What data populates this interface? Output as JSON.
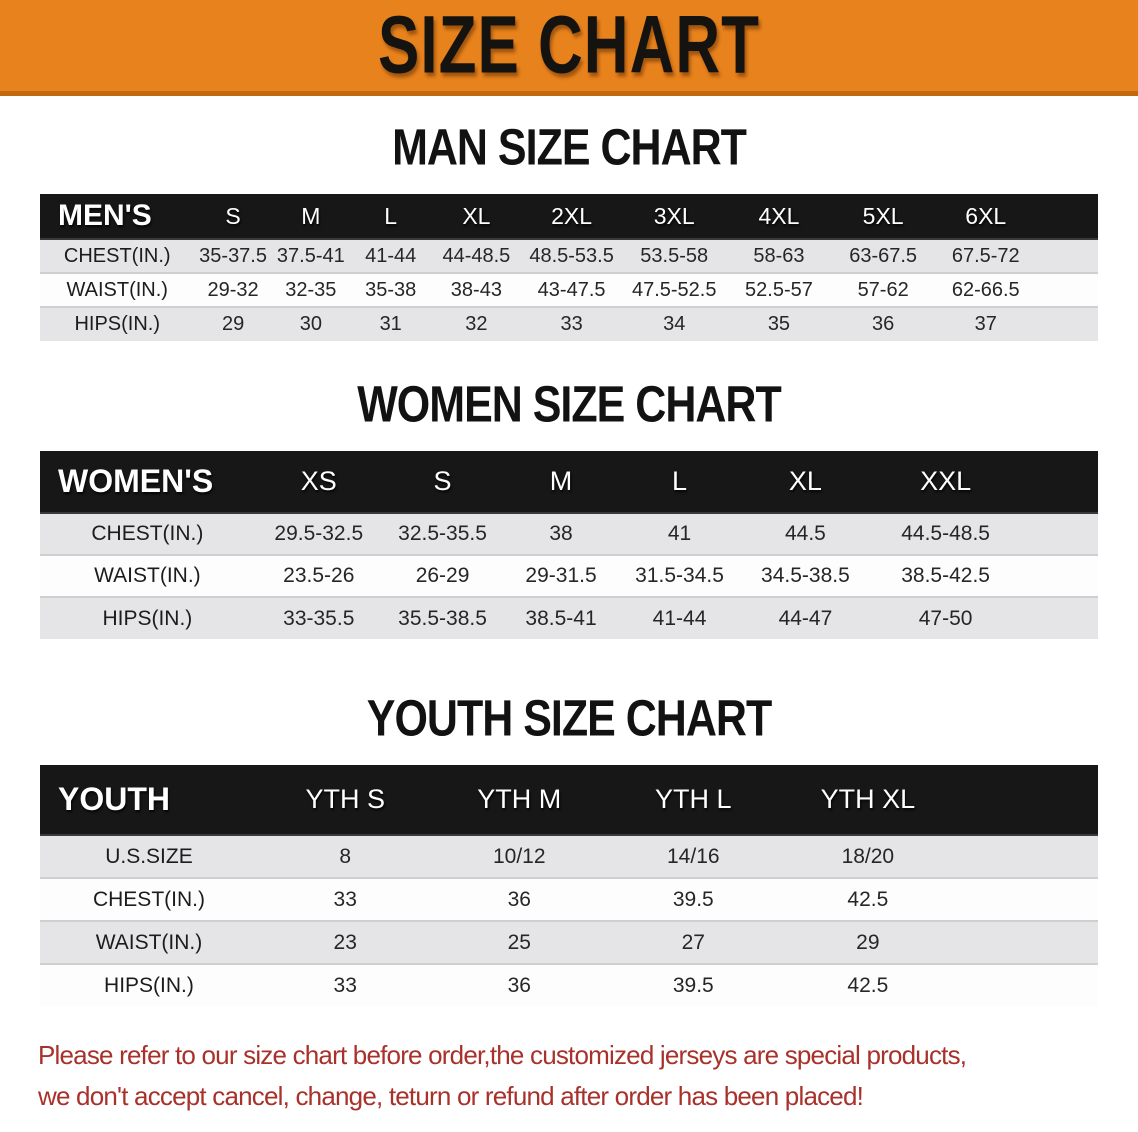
{
  "banner": {
    "title": "SIZE CHART"
  },
  "colors": {
    "banner_bg": "#E8821C",
    "banner_edge": "#C0690F",
    "table_header_bg": "#171717",
    "table_header_text": "#FFFFFF",
    "row_shaded_bg": "#E5E5E7",
    "row_plain_bg": "#FDFDFD",
    "body_text": "#262626",
    "disclaimer_text": "#A8322B"
  },
  "sections": [
    {
      "heading": "MAN SIZE CHART",
      "table": {
        "corner_label": "MEN'S",
        "columns": [
          "S",
          "M",
          "L",
          "XL",
          "2XL",
          "3XL",
          "4XL",
          "5XL",
          "6XL"
        ],
        "rows": [
          {
            "label": "CHEST(IN.)",
            "values": [
              "35-37.5",
              "37.5-41",
              "41-44",
              "44-48.5",
              "48.5-53.5",
              "53.5-58",
              "58-63",
              "63-67.5",
              "67.5-72"
            ]
          },
          {
            "label": "WAIST(IN.)",
            "values": [
              "29-32",
              "32-35",
              "35-38",
              "38-43",
              "43-47.5",
              "47.5-52.5",
              "52.5-57",
              "57-62",
              "62-66.5"
            ]
          },
          {
            "label": "HIPS(IN.)",
            "values": [
              "29",
              "30",
              "31",
              "32",
              "33",
              "34",
              "35",
              "36",
              "37"
            ]
          }
        ]
      }
    },
    {
      "heading": "WOMEN SIZE CHART",
      "table": {
        "corner_label": "WOMEN'S",
        "columns": [
          "XS",
          "S",
          "M",
          "L",
          "XL",
          "XXL"
        ],
        "rows": [
          {
            "label": "CHEST(IN.)",
            "values": [
              "29.5-32.5",
              "32.5-35.5",
              "38",
              "41",
              "44.5",
              "44.5-48.5"
            ]
          },
          {
            "label": "WAIST(IN.)",
            "values": [
              "23.5-26",
              "26-29",
              "29-31.5",
              "31.5-34.5",
              "34.5-38.5",
              "38.5-42.5"
            ]
          },
          {
            "label": "HIPS(IN.)",
            "values": [
              "33-35.5",
              "35.5-38.5",
              "38.5-41",
              "41-44",
              "44-47",
              "47-50"
            ]
          }
        ]
      }
    },
    {
      "heading": "YOUTH SIZE CHART",
      "table": {
        "corner_label": "YOUTH",
        "columns": [
          "YTH S",
          "YTH M",
          "YTH L",
          "YTH XL"
        ],
        "rows": [
          {
            "label": "U.S.SIZE",
            "values": [
              "8",
              "10/12",
              "14/16",
              "18/20"
            ]
          },
          {
            "label": "CHEST(IN.)",
            "values": [
              "33",
              "36",
              "39.5",
              "42.5"
            ]
          },
          {
            "label": "WAIST(IN.)",
            "values": [
              "23",
              "25",
              "27",
              "29"
            ]
          },
          {
            "label": "HIPS(IN.)",
            "values": [
              "33",
              "36",
              "39.5",
              "42.5"
            ]
          }
        ]
      }
    }
  ],
  "disclaimer": {
    "lines": [
      "Please refer to our size chart before order,the customized jerseys are special products,",
      "we don't accept cancel, change, teturn or refund after order has been placed!"
    ]
  }
}
